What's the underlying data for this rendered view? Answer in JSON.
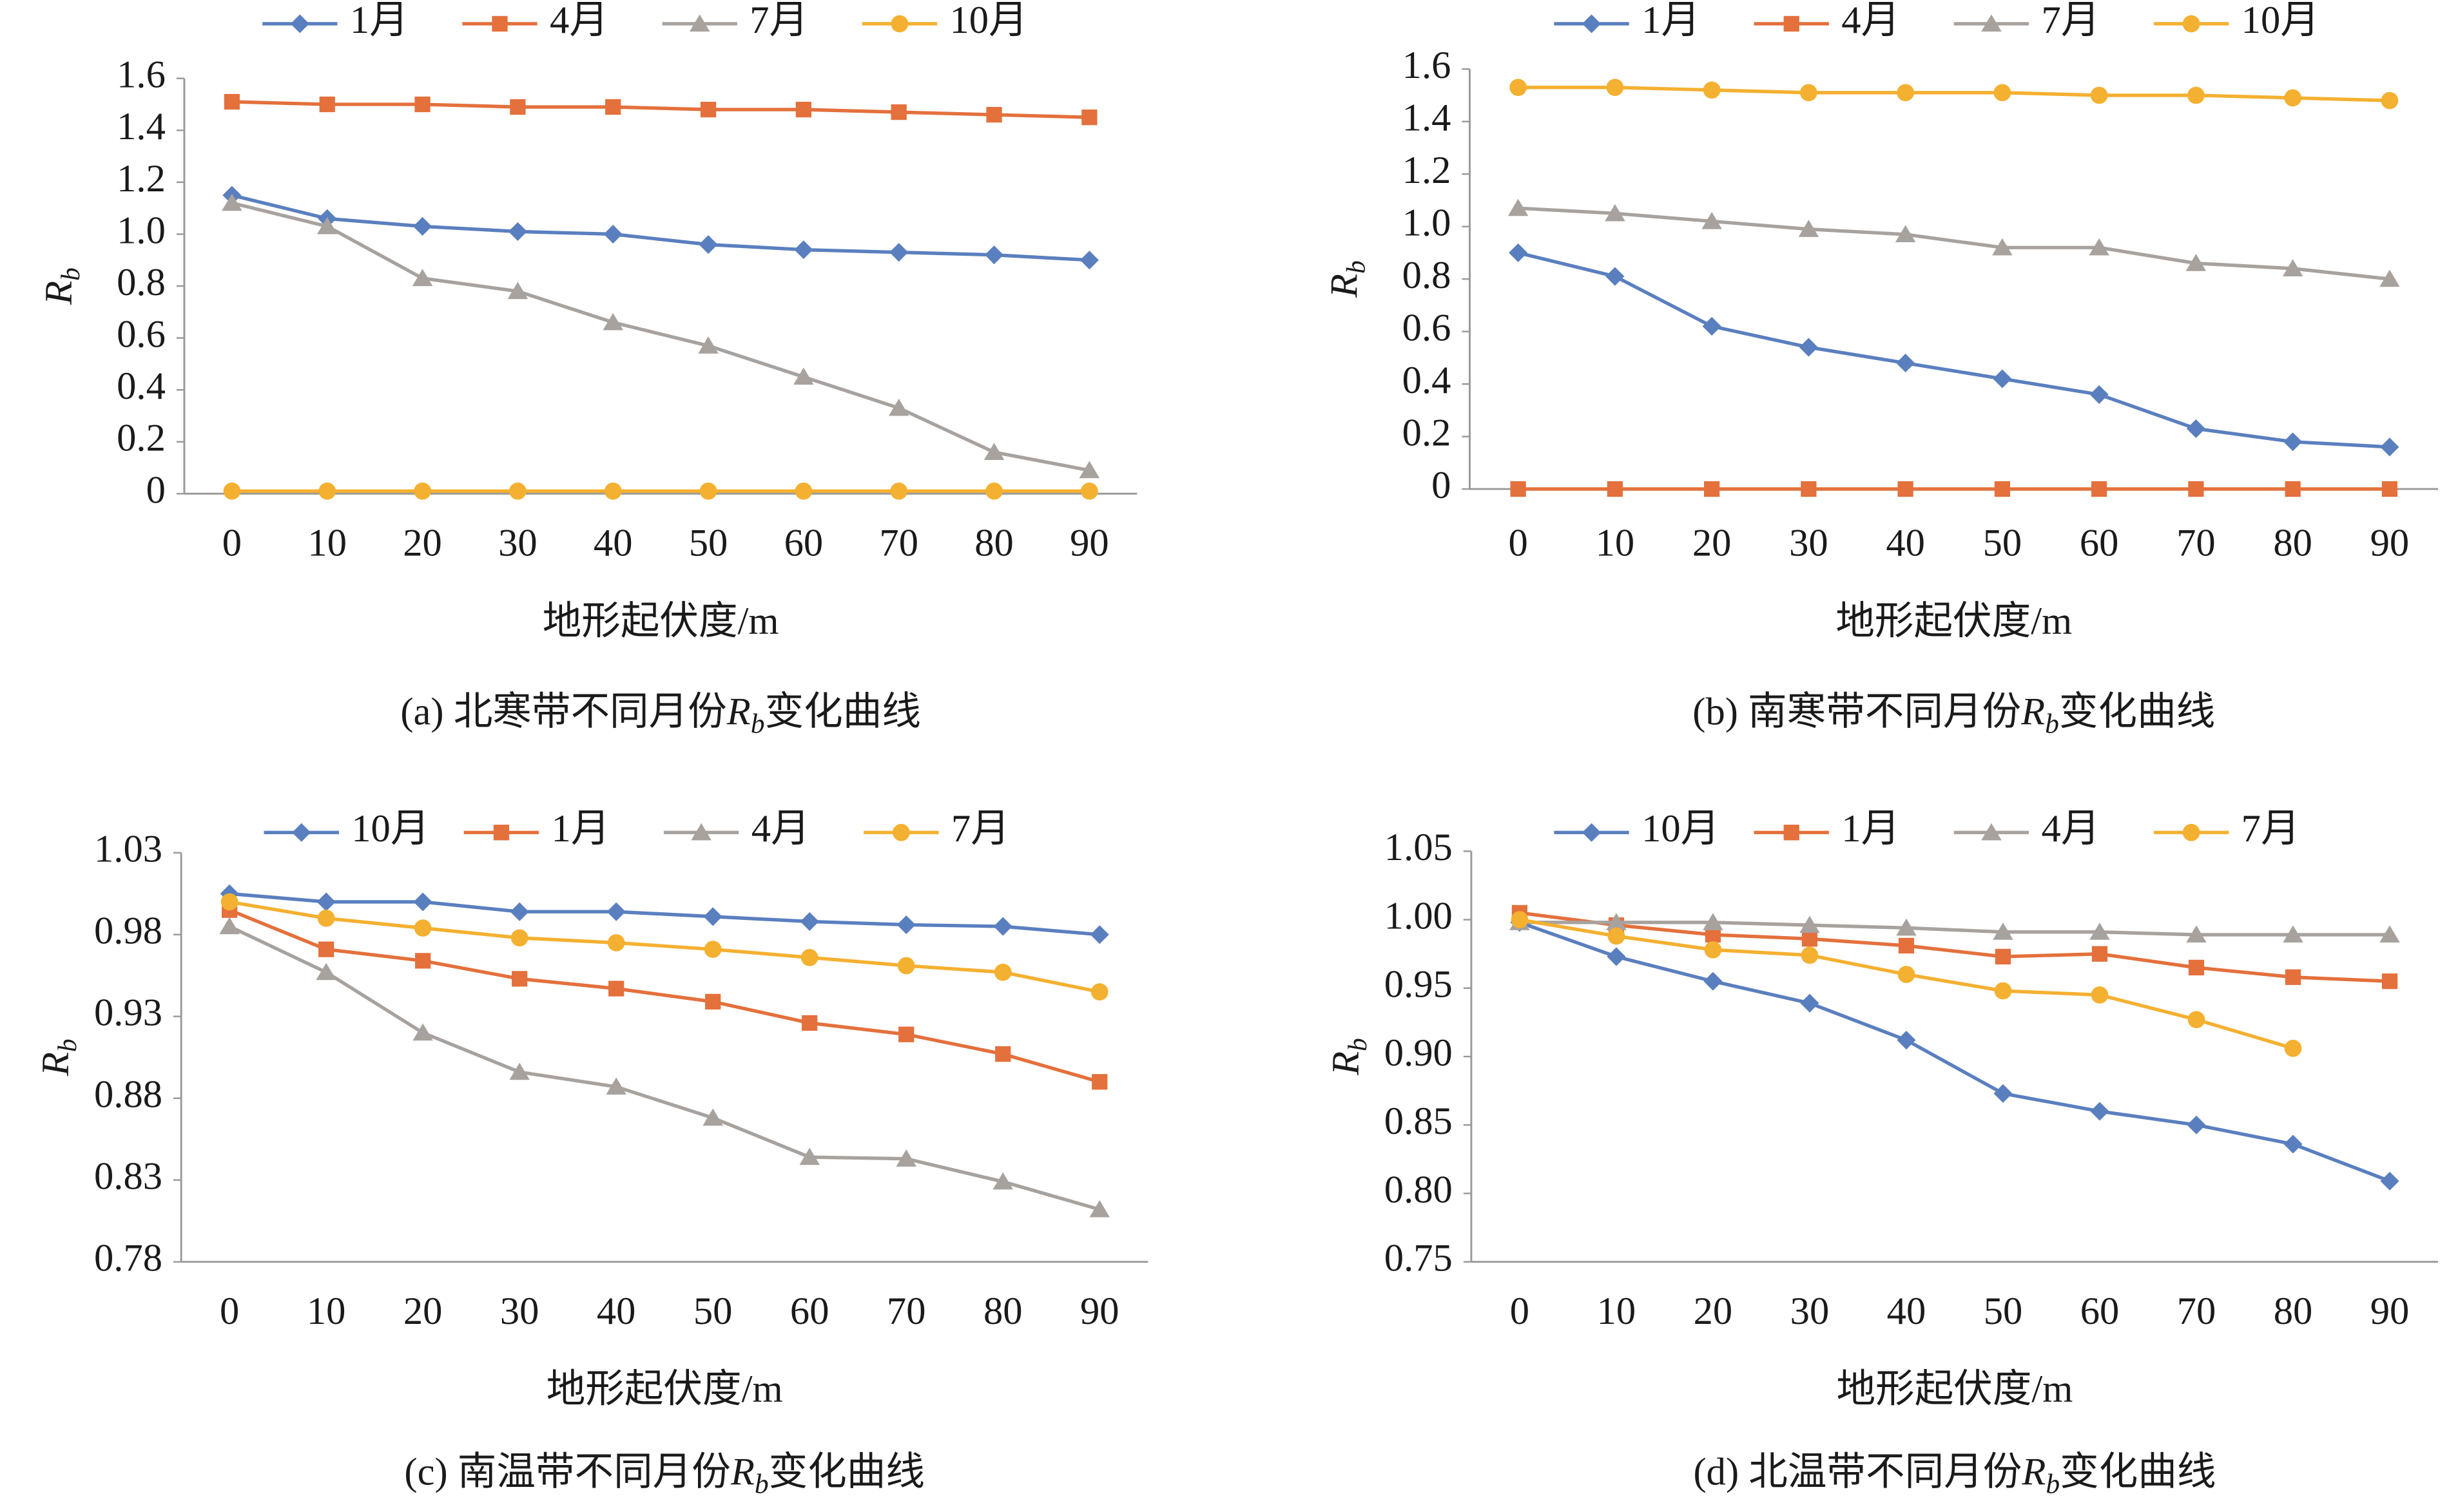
{
  "chart_data": [
    {
      "type": "line",
      "ylabel": [
        "R",
        "b"
      ],
      "xlabel": "地形起伏度/m",
      "caption": [
        "(a) 北寒带不同月份",
        "R",
        "b",
        "变化曲线"
      ],
      "categories": [
        "0",
        "10",
        "20",
        "30",
        "40",
        "50",
        "60",
        "70",
        "80",
        "90"
      ],
      "ylim": [
        0,
        1.6
      ],
      "yticks": [
        0,
        0.2,
        0.4,
        0.6,
        0.8,
        {
          "value": 1,
          "label": "1.0"
        },
        1.2,
        1.4,
        1.6
      ],
      "series": [
        {
          "name": "1月",
          "color": "#5a7fbf",
          "marker": "diamond",
          "values": [
            1.15,
            1.06,
            1.03,
            1.01,
            1.0,
            0.96,
            0.94,
            0.93,
            0.92,
            0.9
          ]
        },
        {
          "name": "4月",
          "color": "#e4703c",
          "marker": "square",
          "values": [
            1.51,
            1.5,
            1.5,
            1.49,
            1.49,
            1.48,
            1.48,
            1.47,
            1.46,
            1.45
          ]
        },
        {
          "name": "7月",
          "color": "#a8a29e",
          "marker": "triangle",
          "values": [
            1.12,
            1.03,
            0.83,
            0.78,
            0.66,
            0.57,
            0.45,
            0.33,
            0.16,
            0.09
          ]
        },
        {
          "name": "10月",
          "color": "#f4b030",
          "marker": "circle",
          "values": [
            0.01,
            0.01,
            0.01,
            0.01,
            0.01,
            0.01,
            0.01,
            0.01,
            0.01,
            0.01
          ]
        }
      ]
    },
    {
      "type": "line",
      "ylabel": [
        "R",
        "b"
      ],
      "xlabel": "地形起伏度/m",
      "caption": [
        "(b) 南寒带不同月份",
        "R",
        "b",
        "变化曲线"
      ],
      "categories": [
        "0",
        "10",
        "20",
        "30",
        "40",
        "50",
        "60",
        "70",
        "80",
        "90"
      ],
      "ylim": [
        0,
        1.6
      ],
      "yticks": [
        0,
        0.2,
        0.4,
        0.6,
        0.8,
        {
          "value": 1,
          "label": "1.0"
        },
        1.2,
        1.4,
        1.6
      ],
      "series": [
        {
          "name": "1月",
          "color": "#5a7fbf",
          "marker": "diamond",
          "values": [
            0.9,
            0.81,
            0.62,
            0.54,
            0.48,
            0.42,
            0.36,
            0.23,
            0.18,
            0.16
          ]
        },
        {
          "name": "4月",
          "color": "#e4703c",
          "marker": "square",
          "values": [
            0,
            0,
            0,
            0,
            0,
            0,
            0,
            0,
            0,
            0
          ]
        },
        {
          "name": "7月",
          "color": "#a8a29e",
          "marker": "triangle",
          "values": [
            1.07,
            1.05,
            1.02,
            0.99,
            0.97,
            0.92,
            0.92,
            0.86,
            0.84,
            0.8
          ]
        },
        {
          "name": "10月",
          "color": "#f4b030",
          "marker": "circle",
          "values": [
            1.53,
            1.53,
            1.52,
            1.51,
            1.51,
            1.51,
            1.5,
            1.5,
            1.49,
            1.48
          ]
        }
      ]
    },
    {
      "type": "line",
      "ylabel": [
        "R",
        "b"
      ],
      "xlabel": "地形起伏度/m",
      "caption": [
        "(c) 南温带不同月份",
        "R",
        "b",
        "变化曲线"
      ],
      "categories": [
        "0",
        "10",
        "20",
        "30",
        "40",
        "50",
        "60",
        "70",
        "80",
        "90"
      ],
      "ylim": [
        0.78,
        1.03
      ],
      "yticks": [
        0.78,
        0.83,
        0.88,
        0.93,
        0.98,
        1.03
      ],
      "series": [
        {
          "name": "10月",
          "color": "#5a7fbf",
          "marker": "diamond",
          "values": [
            1.005,
            1.0,
            1.0,
            0.994,
            0.994,
            0.991,
            0.988,
            0.986,
            0.985,
            0.98
          ]
        },
        {
          "name": "1月",
          "color": "#e4703c",
          "marker": "square",
          "values": [
            0.995,
            0.971,
            0.964,
            0.953,
            0.947,
            0.939,
            0.926,
            0.919,
            0.907,
            0.89
          ]
        },
        {
          "name": "4月",
          "color": "#a8a29e",
          "marker": "triangle",
          "values": [
            0.985,
            0.957,
            0.92,
            0.896,
            0.887,
            0.868,
            0.844,
            0.843,
            0.829,
            0.812
          ]
        },
        {
          "name": "7月",
          "color": "#f4b030",
          "marker": "circle",
          "values": [
            1.0,
            0.99,
            0.984,
            0.978,
            0.975,
            0.971,
            0.966,
            0.961,
            0.957,
            0.945
          ]
        }
      ]
    },
    {
      "type": "line",
      "ylabel": [
        "R",
        "b"
      ],
      "xlabel": "地形起伏度/m",
      "caption": [
        "(d) 北温带不同月份",
        "R",
        "b",
        "变化曲线"
      ],
      "categories": [
        "0",
        "10",
        "20",
        "30",
        "40",
        "50",
        "60",
        "70",
        "80",
        "90"
      ],
      "ylim": [
        0.75,
        1.05
      ],
      "yticks": [
        0.75,
        {
          "value": 0.8,
          "label": "0.80"
        },
        0.85,
        {
          "value": 0.9,
          "label": "0.90"
        },
        0.95,
        {
          "value": 1,
          "label": "1.00"
        },
        1.05
      ],
      "series": [
        {
          "name": "10月",
          "color": "#5a7fbf",
          "marker": "diamond",
          "values": [
            0.998,
            0.973,
            0.955,
            0.939,
            0.912,
            0.873,
            0.86,
            0.85,
            0.836,
            0.809
          ]
        },
        {
          "name": "1月",
          "color": "#e4703c",
          "marker": "square",
          "values": [
            1.005,
            0.996,
            0.989,
            0.986,
            0.981,
            0.973,
            0.975,
            0.965,
            0.958,
            0.955
          ]
        },
        {
          "name": "4月",
          "color": "#a8a29e",
          "marker": "triangle",
          "values": [
            0.998,
            0.998,
            0.998,
            0.996,
            0.994,
            0.991,
            0.991,
            0.989,
            0.989,
            0.989
          ]
        },
        {
          "name": "7月",
          "color": "#f4b030",
          "marker": "circle",
          "values": [
            1.0,
            0.988,
            0.978,
            0.974,
            0.96,
            0.948,
            0.945,
            0.927,
            0.906,
            null
          ]
        }
      ]
    }
  ]
}
